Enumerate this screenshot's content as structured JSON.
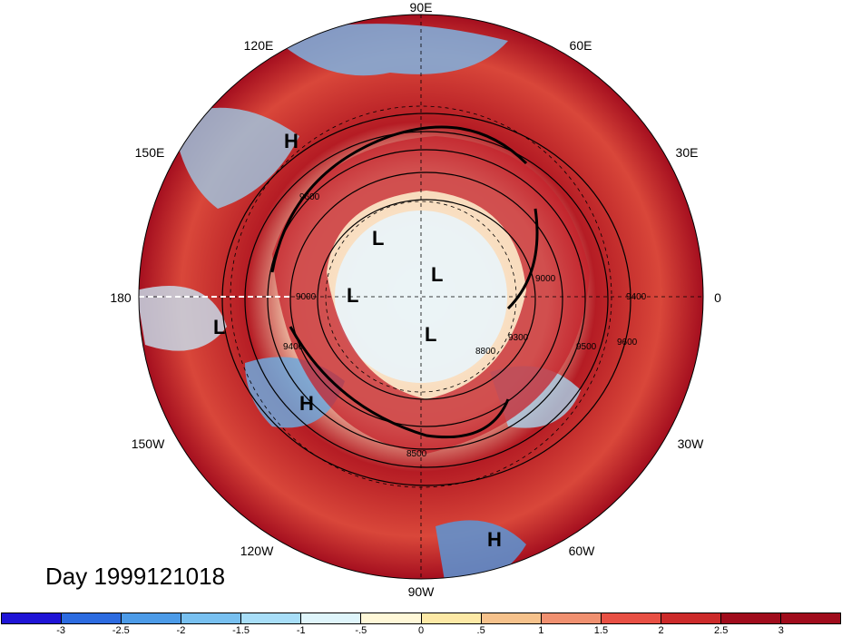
{
  "longitude_labels": {
    "lon_90e": "90E",
    "lon_120e": "120E",
    "lon_60e": "60E",
    "lon_150e": "150E",
    "lon_30e": "30E",
    "lon_180": "180",
    "lon_0": "0",
    "lon_150w": "150W",
    "lon_30w": "30W",
    "lon_120w": "120W",
    "lon_60w": "60W",
    "lon_90w": "90W"
  },
  "pressure_centers": [
    "H",
    "L",
    "L",
    "L",
    "L",
    "L",
    "H",
    "H"
  ],
  "contour_labels": [
    "9600",
    "9000",
    "9400",
    "8800",
    "9300",
    "8500",
    "9500",
    "9600",
    "9400",
    "9000"
  ],
  "day_label": "Day 1999121018",
  "colorbar": {
    "ticks": [
      "-3",
      "-2.5",
      "-2",
      "-1.5",
      "-1",
      "-.5",
      "0",
      ".5",
      "1",
      "1.5",
      "2",
      "2.5",
      "3"
    ],
    "colors": [
      "#1f14d6",
      "#2c6be0",
      "#4c9be8",
      "#78c0f0",
      "#a8def8",
      "#dff5fb",
      "#fff8d8",
      "#fde9a6",
      "#f6c28c",
      "#f09070",
      "#e85044",
      "#cc2a2a",
      "#a00c1c",
      "#a00c1c"
    ]
  },
  "field_colors": {
    "strong_warm": "#a50f1f",
    "warm": "#d7322e",
    "mild_warm": "#f4a582",
    "neutral": "#fdf3d7",
    "cool": "#92c5de",
    "strong_cool": "#2166ac"
  }
}
